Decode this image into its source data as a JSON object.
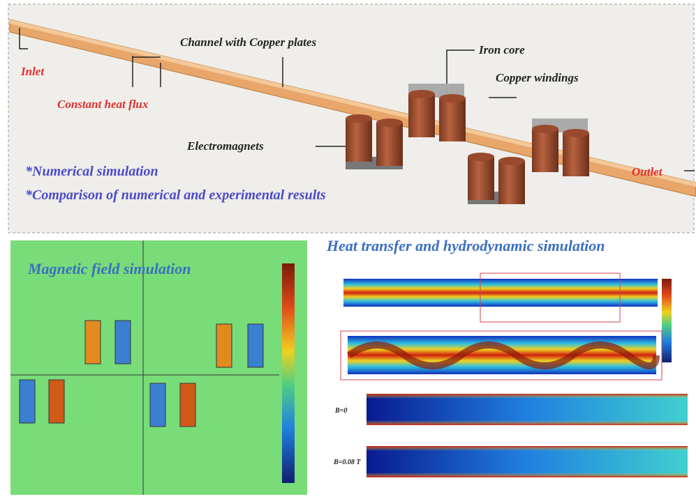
{
  "top": {
    "inlet": "Inlet",
    "heat_flux": "Constant heat flux",
    "channel": "Channel with Copper plates",
    "iron_core": "Iron core",
    "windings": "Copper windings",
    "electromagnets": "Electromagnets",
    "outlet": "Outlet",
    "highlights": [
      "*Numerical simulation",
      "*Comparison of numerical and experimental results"
    ]
  },
  "bottom_left": {
    "title": "Magnetic field simulation"
  },
  "bottom_right": {
    "title": "Heat transfer and hydrodynamic simulation",
    "cases": [
      "B=0",
      "B=0.08 T"
    ]
  }
}
